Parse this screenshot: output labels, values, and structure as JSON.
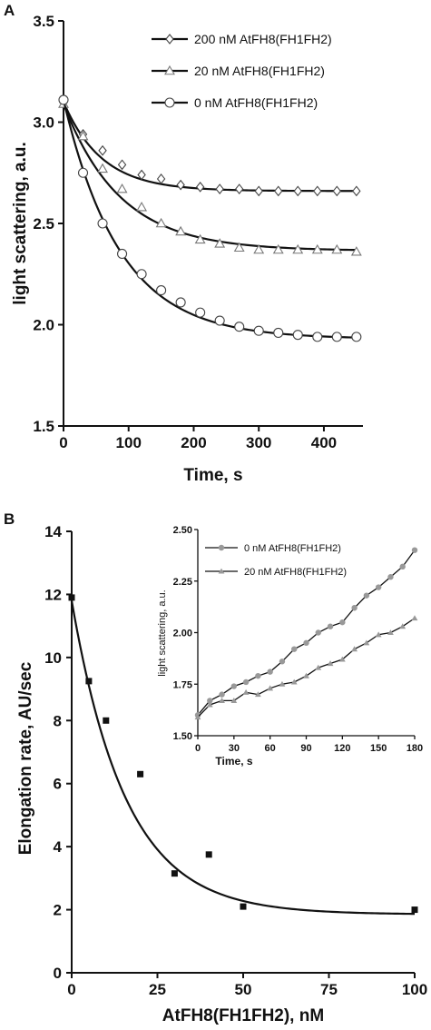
{
  "panel_labels": [
    "A",
    "B"
  ],
  "chart_data": [
    {
      "id": "A",
      "type": "line",
      "xlabel": "Time, s",
      "ylabel": "light scattering, a.u.",
      "xlim": [
        0,
        460
      ],
      "ylim": [
        1.5,
        3.5
      ],
      "xticks": [
        0,
        100,
        200,
        300,
        400
      ],
      "yticks": [
        1.5,
        2.0,
        2.5,
        3.0,
        3.5
      ],
      "ytick_labels": [
        "1.5",
        "2.0",
        "2.5",
        "3.0",
        "3.5"
      ],
      "legend_position": "top-right",
      "series": [
        {
          "name": "200 nM AtFH8(FH1FH2)",
          "marker": "diamond",
          "x": [
            0,
            30,
            60,
            90,
            120,
            150,
            180,
            210,
            240,
            270,
            300,
            330,
            360,
            390,
            420,
            450
          ],
          "y": [
            3.1,
            2.94,
            2.86,
            2.79,
            2.74,
            2.72,
            2.69,
            2.68,
            2.67,
            2.67,
            2.66,
            2.66,
            2.66,
            2.66,
            2.66,
            2.66
          ],
          "fit_y0": 3.1,
          "fit_plateau": 2.66,
          "fit_k": 0.017
        },
        {
          "name": "20 nM AtFH8(FH1FH2)",
          "marker": "triangle",
          "x": [
            0,
            30,
            60,
            90,
            120,
            150,
            180,
            210,
            240,
            270,
            300,
            330,
            360,
            390,
            420,
            450
          ],
          "y": [
            3.09,
            2.93,
            2.77,
            2.67,
            2.58,
            2.5,
            2.46,
            2.42,
            2.4,
            2.38,
            2.37,
            2.37,
            2.37,
            2.37,
            2.37,
            2.36
          ],
          "fit_y0": 3.09,
          "fit_plateau": 2.365,
          "fit_k": 0.0115
        },
        {
          "name": "0 nM AtFH8(FH1FH2)",
          "marker": "circle",
          "x": [
            0,
            30,
            60,
            90,
            120,
            150,
            180,
            210,
            240,
            270,
            300,
            330,
            360,
            390,
            420,
            450
          ],
          "y": [
            3.11,
            2.75,
            2.5,
            2.35,
            2.25,
            2.17,
            2.11,
            2.06,
            2.02,
            1.99,
            1.97,
            1.96,
            1.95,
            1.94,
            1.94,
            1.94
          ],
          "fit_y0": 3.11,
          "fit_plateau": 1.93,
          "fit_k": 0.0115
        }
      ]
    },
    {
      "id": "B",
      "type": "scatter",
      "xlabel": "AtFH8(FH1FH2), nM",
      "ylabel": "Elongation rate, AU/sec",
      "xlim": [
        0,
        100
      ],
      "ylim": [
        0,
        14
      ],
      "xticks": [
        0,
        25,
        50,
        75,
        100
      ],
      "yticks": [
        0,
        2,
        4,
        6,
        8,
        10,
        12,
        14
      ],
      "points": {
        "x": [
          0,
          5,
          10,
          20,
          30,
          40,
          50,
          100
        ],
        "y": [
          11.9,
          9.25,
          8.0,
          6.3,
          3.15,
          3.75,
          2.1,
          2.0
        ]
      },
      "fit": {
        "y0": 11.8,
        "plateau": 1.85,
        "k": 0.063
      }
    },
    {
      "id": "B-inset",
      "type": "line",
      "xlabel": "Time, s",
      "ylabel": "light scattering, a.u.",
      "xlim": [
        0,
        180
      ],
      "ylim": [
        1.5,
        2.5
      ],
      "xticks": [
        0,
        30,
        60,
        90,
        120,
        150,
        180
      ],
      "yticks": [
        1.5,
        1.75,
        2.0,
        2.25,
        2.5
      ],
      "ytick_labels": [
        "1.50",
        "1.75",
        "2.00",
        "2.25",
        "2.50"
      ],
      "legend_position": "top-left",
      "series": [
        {
          "name": "0 nM AtFH8(FH1FH2)",
          "marker": "circle",
          "color": "#999999",
          "x": [
            0,
            10,
            20,
            30,
            40,
            50,
            60,
            70,
            80,
            90,
            100,
            110,
            120,
            130,
            140,
            150,
            160,
            170,
            180
          ],
          "y": [
            1.6,
            1.67,
            1.7,
            1.74,
            1.76,
            1.79,
            1.81,
            1.86,
            1.92,
            1.95,
            2.0,
            2.03,
            2.05,
            2.12,
            2.18,
            2.22,
            2.27,
            2.32,
            2.4
          ]
        },
        {
          "name": "20 nM AtFH8(FH1FH2)",
          "marker": "triangle",
          "color": "#999999",
          "x": [
            0,
            10,
            20,
            30,
            40,
            50,
            60,
            70,
            80,
            90,
            100,
            110,
            120,
            130,
            140,
            150,
            160,
            170,
            180
          ],
          "y": [
            1.59,
            1.65,
            1.67,
            1.67,
            1.71,
            1.7,
            1.73,
            1.75,
            1.76,
            1.79,
            1.83,
            1.85,
            1.87,
            1.92,
            1.95,
            1.99,
            2.0,
            2.03,
            2.07
          ]
        }
      ]
    }
  ]
}
